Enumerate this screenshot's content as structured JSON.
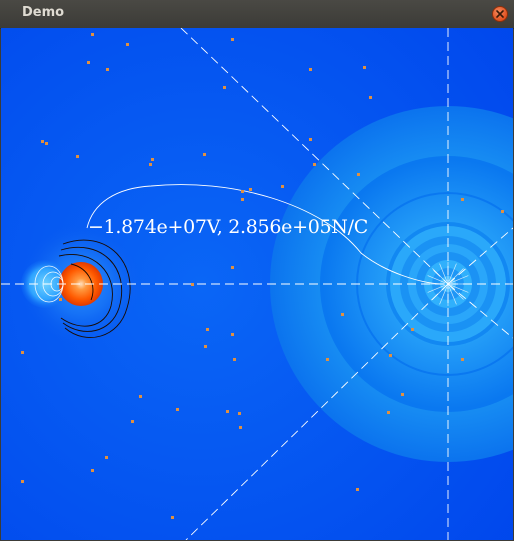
{
  "window": {
    "title": "Demo",
    "close_icon": "close-icon"
  },
  "readout": {
    "text": "−1.874e+07V, 2.856e+05N/C",
    "potential": -18740000,
    "potential_unit": "V",
    "field_strength": 285600,
    "field_unit": "N/C"
  },
  "colors": {
    "background": "#0050f0",
    "titlebar": "#3c3b37",
    "title_text": "#dfdbd2",
    "close_button": "#e0501f",
    "positive_charge": "#ff5a00",
    "field_lines": "#ffffff",
    "particles": "#e09040"
  }
}
